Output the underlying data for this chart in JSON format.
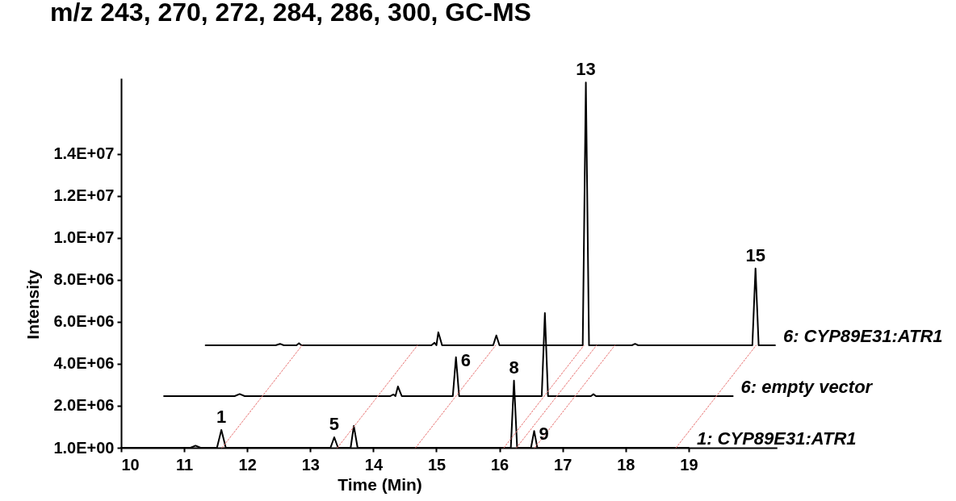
{
  "chart_data": {
    "type": "line",
    "title": "m/z 243, 270, 272, 284, 286, 300, GC-MS",
    "xlabel": "Time (Min)",
    "ylabel": "Intensity",
    "xlim": [
      10,
      20.4
    ],
    "xticks": [
      10,
      11,
      12,
      13,
      14,
      15,
      16,
      17,
      18,
      19
    ],
    "ylim": [
      0,
      17600000
    ],
    "yticks": [
      {
        "value": 1,
        "label": "1.0E+00"
      },
      {
        "value": 2000000,
        "label": "2.0E+06"
      },
      {
        "value": 4000000,
        "label": "4.0E+06"
      },
      {
        "value": 6000000,
        "label": "6.0E+06"
      },
      {
        "value": 8000000,
        "label": "8.0E+06"
      },
      {
        "value": 10000000,
        "label": "1.0E+07"
      },
      {
        "value": 12000000,
        "label": "1.2E+07"
      },
      {
        "value": 14000000,
        "label": "1.4E+07"
      }
    ],
    "series": [
      {
        "name": "1: CYP89E31:ATR1",
        "type": "line",
        "color": "#000000",
        "x": [
          10,
          11.1,
          11.18,
          11.26,
          11.52,
          11.59,
          11.66,
          13.32,
          13.38,
          13.44,
          13.64,
          13.69,
          13.75,
          16.18,
          16.23,
          16.28,
          16.5,
          16.55,
          16.6,
          19
        ],
        "values": [
          0,
          0,
          100000,
          0,
          0,
          850000,
          0,
          0,
          500000,
          0,
          0,
          1040000,
          0,
          0,
          3200000,
          0,
          0,
          800000,
          0,
          0
        ]
      },
      {
        "name": "6: empty vector",
        "type": "line",
        "color": "#000000",
        "x": [
          10.68,
          11.8,
          11.88,
          11.96,
          14.27,
          14.32,
          14.35,
          14.39,
          14.45,
          15.26,
          15.31,
          15.36,
          16.67,
          16.72,
          16.77,
          17.45,
          17.49,
          17.53,
          19.7
        ],
        "values": [
          2460000,
          2460000,
          2560000,
          2460000,
          2460000,
          2540000,
          2460000,
          2920000,
          2460000,
          2460000,
          4310000,
          2460000,
          2460000,
          6420000,
          2460000,
          2460000,
          2550000,
          2460000,
          2460000
        ]
      },
      {
        "name": "6: CYP89E31:ATR1",
        "type": "line",
        "color": "#000000",
        "x": [
          11.34,
          12.45,
          12.52,
          12.58,
          12.78,
          12.82,
          12.86,
          14.92,
          14.97,
          15.0,
          15.03,
          15.09,
          15.9,
          15.95,
          16.0,
          17.32,
          17.37,
          17.42,
          18.1,
          18.15,
          18.2,
          20.01,
          20.06,
          20.11,
          20.37
        ],
        "values": [
          4880000,
          4880000,
          4950000,
          4880000,
          4880000,
          4980000,
          4880000,
          4880000,
          5000000,
          4880000,
          5500000,
          4880000,
          4880000,
          5350000,
          4880000,
          4880000,
          17400000,
          4880000,
          4880000,
          4950000,
          4880000,
          4880000,
          8540000,
          4880000,
          4880000
        ]
      },
      {
        "type": "line",
        "color": "#e8706f",
        "line_style": "dotted",
        "x": [
          11.6,
          12.87
        ],
        "values": [
          0,
          4880000
        ]
      },
      {
        "type": "line",
        "color": "#e8706f",
        "line_style": "dotted",
        "x": [
          13.43,
          14.7
        ],
        "values": [
          0,
          4880000
        ]
      },
      {
        "type": "line",
        "color": "#e8706f",
        "line_style": "dotted",
        "x": [
          14.67,
          15.94
        ],
        "values": [
          0,
          4880000
        ]
      },
      {
        "type": "line",
        "color": "#e8706f",
        "line_style": "dotted",
        "x": [
          16.07,
          17.34
        ],
        "values": [
          0,
          4880000
        ]
      },
      {
        "type": "line",
        "color": "#e8706f",
        "line_style": "dotted",
        "x": [
          16.27,
          17.54
        ],
        "values": [
          0,
          4880000
        ]
      },
      {
        "type": "line",
        "color": "#e8706f",
        "line_style": "dotted",
        "x": [
          16.56,
          17.83
        ],
        "values": [
          0,
          4880000
        ]
      },
      {
        "type": "line",
        "color": "#e8706f",
        "line_style": "dotted",
        "x": [
          18.8,
          20.07
        ],
        "values": [
          0,
          4880000
        ]
      }
    ],
    "annotations": [
      {
        "text": "1",
        "x": 11.59,
        "y": 850000
      },
      {
        "text": "5",
        "x": 13.38,
        "y": 500000
      },
      {
        "text": "6",
        "x": 15.31,
        "y": 4310000
      },
      {
        "text": "8",
        "x": 16.23,
        "y": 3200000
      },
      {
        "text": "9",
        "x": 16.55,
        "y": 800000
      },
      {
        "text": "13",
        "x": 17.37,
        "y": 17400000
      },
      {
        "text": "15",
        "x": 20.06,
        "y": 8540000
      }
    ]
  }
}
